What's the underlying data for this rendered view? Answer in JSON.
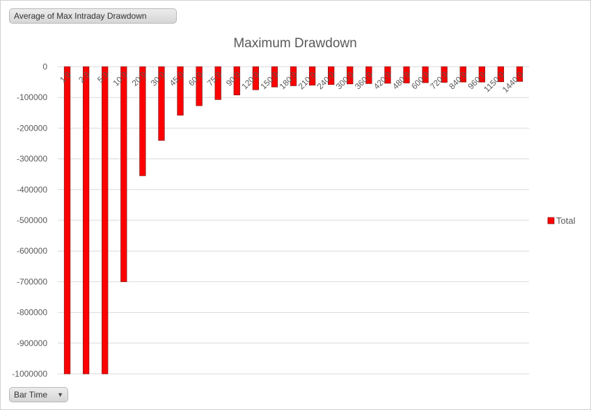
{
  "field_buttons": {
    "value_field": "Average of Max Intraday Drawdown",
    "axis_field": "Bar Time",
    "dropdown_glyph": "▼"
  },
  "colors": {
    "bar_fill": "#ff0000",
    "bar_stroke": "#8c1a1a",
    "grid": "#d9d9d9",
    "text": "#595959"
  },
  "chart_data": {
    "type": "bar",
    "title": "Maximum Drawdown",
    "categories": [
      "1.0",
      "2.0",
      "5.0",
      "10.0",
      "20.0",
      "30.0",
      "45.0",
      "60.0",
      "75.0",
      "90.0",
      "120.0",
      "150.0",
      "180.0",
      "210.0",
      "240.0",
      "300.0",
      "360.0",
      "420.0",
      "480.0",
      "600.0",
      "720.0",
      "840.0",
      "960.0",
      "1150.0",
      "1440.0"
    ],
    "series": [
      {
        "name": "Total",
        "values": [
          -1000000,
          -1000000,
          -1000000,
          -700000,
          -355000,
          -240000,
          -158000,
          -127000,
          -107000,
          -92000,
          -75000,
          -66000,
          -62000,
          -60000,
          -58000,
          -56000,
          -55000,
          -54000,
          -53000,
          -52000,
          -51000,
          -50000,
          -50000,
          -49000,
          -48000
        ]
      }
    ],
    "ylim": [
      -1000000,
      0
    ],
    "yticks": [
      0,
      -100000,
      -200000,
      -300000,
      -400000,
      -500000,
      -600000,
      -700000,
      -800000,
      -900000,
      -1000000
    ],
    "grid": true,
    "legend_position": "right"
  }
}
